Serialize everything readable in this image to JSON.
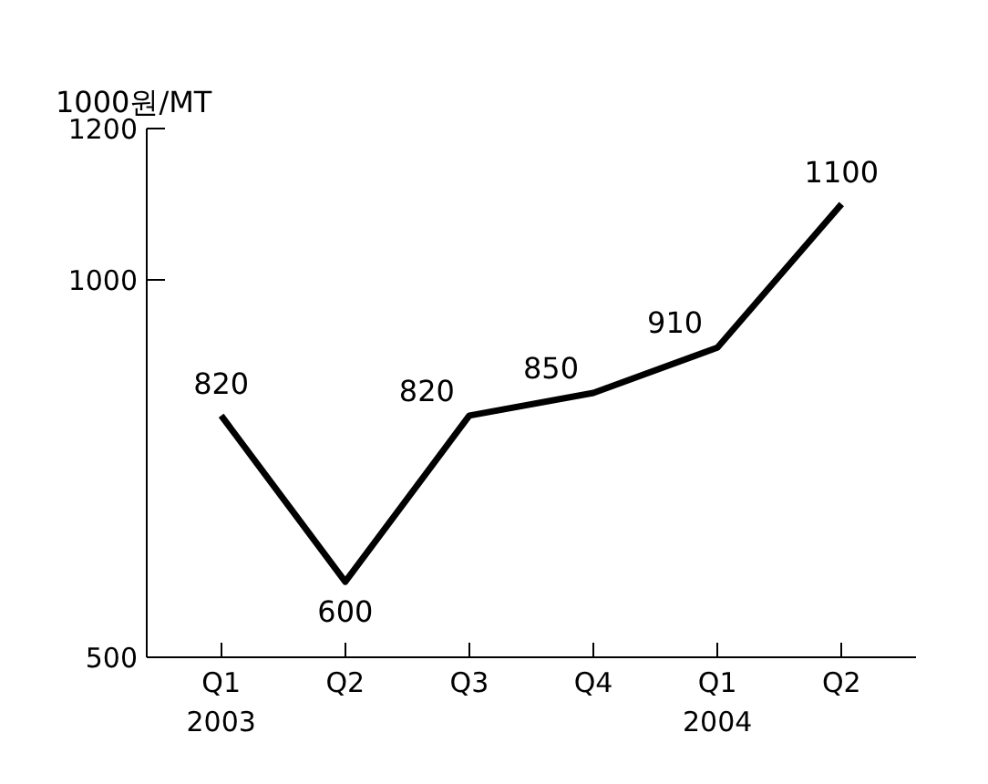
{
  "chart_data": {
    "type": "line",
    "ylabel": "1000원/MT",
    "categories": [
      "Q1\n2003",
      "Q2",
      "Q3",
      "Q4",
      "Q1\n2004",
      "Q2"
    ],
    "values": [
      820,
      600,
      820,
      850,
      910,
      1100
    ],
    "color": "#000000",
    "ylim": [
      500,
      1200
    ],
    "yticks": [
      500,
      1000,
      1200
    ],
    "data_labels": true,
    "grid": false,
    "marker": "none",
    "line_style": "solid"
  }
}
